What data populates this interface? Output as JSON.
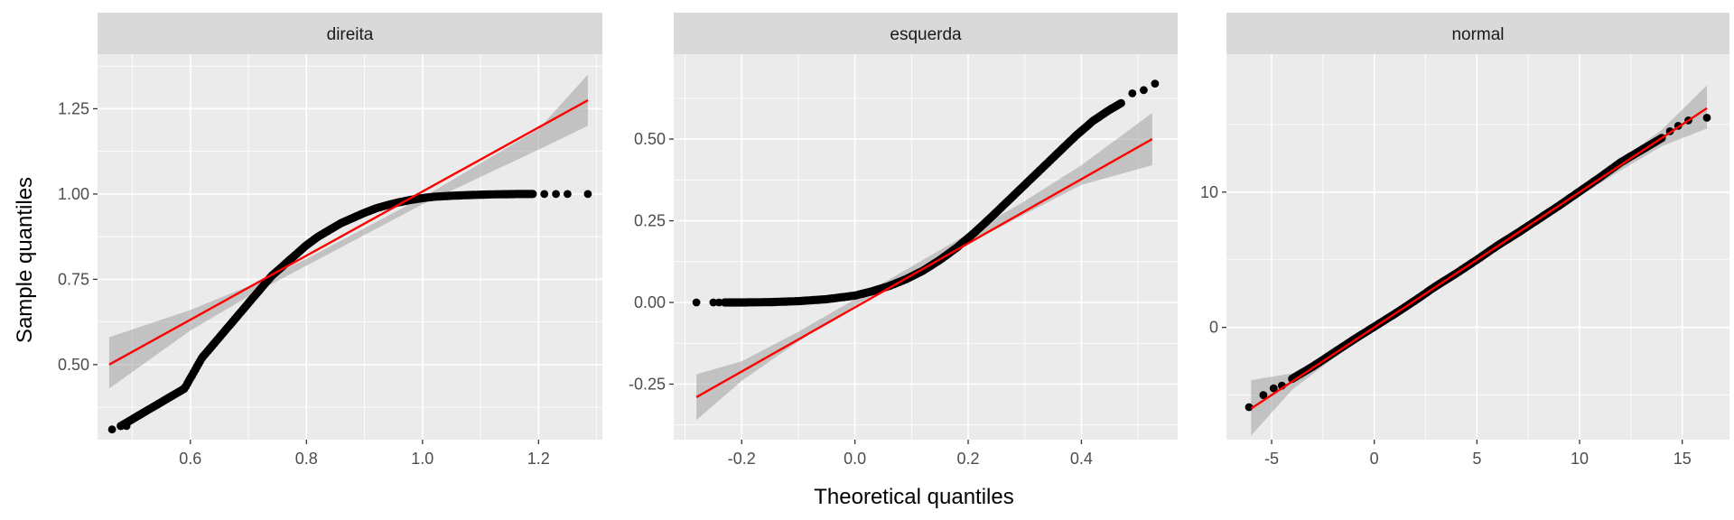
{
  "chart_data": {
    "type": "scatter",
    "xlabel": "Theoretical quantiles",
    "ylabel": "Sample quantiles",
    "colors": {
      "points": "#000000",
      "line": "#FF0000",
      "band": "#999999",
      "panel": "#EBEBEB",
      "strip": "#D9D9D9",
      "grid": "#FFFFFF"
    },
    "panels": [
      {
        "title": "direita",
        "xlim": [
          0.44,
          1.31
        ],
        "ylim": [
          0.28,
          1.41
        ],
        "xticks": [
          0.6,
          0.8,
          1.0,
          1.2
        ],
        "xtick_labels": [
          "0.6",
          "0.8",
          "1.0",
          "1.2"
        ],
        "yticks": [
          0.5,
          0.75,
          1.0,
          1.25
        ],
        "ytick_labels": [
          "0.50",
          "0.75",
          "1.00",
          "1.25"
        ],
        "line": {
          "x": [
            0.46,
            1.285
          ],
          "y": [
            0.5,
            1.275
          ]
        },
        "band": {
          "x": [
            0.46,
            0.6,
            0.7,
            0.8,
            0.9,
            1.0,
            1.1,
            1.2,
            1.285
          ],
          "lower": [
            0.43,
            0.6,
            0.7,
            0.79,
            0.88,
            0.97,
            1.05,
            1.13,
            1.2
          ],
          "upper": [
            0.58,
            0.66,
            0.73,
            0.81,
            0.9,
            0.99,
            1.09,
            1.19,
            1.35
          ]
        },
        "curve": {
          "x": [
            0.48,
            0.52,
            0.55,
            0.58,
            0.59,
            0.6,
            0.61,
            0.62,
            0.64,
            0.66,
            0.68,
            0.7,
            0.72,
            0.74,
            0.76,
            0.78,
            0.8,
            0.82,
            0.84,
            0.86,
            0.88,
            0.9,
            0.92,
            0.94,
            0.96,
            0.98,
            1.0,
            1.02,
            1.05,
            1.08,
            1.12,
            1.16,
            1.19
          ],
          "y": [
            0.32,
            0.36,
            0.39,
            0.42,
            0.43,
            0.46,
            0.49,
            0.52,
            0.56,
            0.6,
            0.64,
            0.68,
            0.72,
            0.76,
            0.79,
            0.82,
            0.85,
            0.875,
            0.895,
            0.915,
            0.93,
            0.945,
            0.958,
            0.968,
            0.976,
            0.983,
            0.988,
            0.992,
            0.995,
            0.997,
            0.999,
            1.0,
            1.0
          ]
        },
        "tail_points": [
          [
            0.465,
            0.31
          ],
          [
            0.49,
            0.32
          ],
          [
            0.51,
            0.35
          ],
          [
            1.21,
            1.0
          ],
          [
            1.23,
            1.0
          ],
          [
            1.25,
            1.0
          ],
          [
            1.285,
            1.0
          ]
        ]
      },
      {
        "title": "esquerda",
        "xlim": [
          -0.32,
          0.57
        ],
        "ylim": [
          -0.42,
          0.76
        ],
        "xticks": [
          -0.2,
          0.0,
          0.2,
          0.4
        ],
        "xtick_labels": [
          "-0.2",
          "0.0",
          "0.2",
          "0.4"
        ],
        "yticks": [
          -0.25,
          0.0,
          0.25,
          0.5
        ],
        "ytick_labels": [
          "-0.25",
          "0.00",
          "0.25",
          "0.50"
        ],
        "line": {
          "x": [
            -0.28,
            0.525
          ],
          "y": [
            -0.29,
            0.5
          ]
        },
        "band": {
          "x": [
            -0.28,
            -0.2,
            -0.1,
            0.0,
            0.1,
            0.2,
            0.3,
            0.4,
            0.525
          ],
          "lower": [
            -0.36,
            -0.24,
            -0.12,
            -0.01,
            0.09,
            0.18,
            0.27,
            0.36,
            0.42
          ],
          "upper": [
            -0.22,
            -0.18,
            -0.09,
            0.01,
            0.11,
            0.21,
            0.31,
            0.42,
            0.58
          ]
        },
        "curve": {
          "x": [
            -0.23,
            -0.2,
            -0.15,
            -0.1,
            -0.05,
            0.0,
            0.03,
            0.06,
            0.09,
            0.12,
            0.15,
            0.18,
            0.21,
            0.24,
            0.27,
            0.3,
            0.33,
            0.36,
            0.39,
            0.42,
            0.45,
            0.47
          ],
          "y": [
            0.0,
            0.0,
            0.001,
            0.004,
            0.01,
            0.021,
            0.034,
            0.05,
            0.071,
            0.097,
            0.13,
            0.168,
            0.212,
            0.26,
            0.31,
            0.36,
            0.41,
            0.46,
            0.51,
            0.555,
            0.59,
            0.61
          ],
          "shift": 0.0
        },
        "tail_points": [
          [
            -0.28,
            0.0
          ],
          [
            -0.25,
            0.0
          ],
          [
            -0.24,
            0.0
          ],
          [
            0.49,
            0.64
          ],
          [
            0.51,
            0.65
          ],
          [
            0.53,
            0.67
          ]
        ]
      },
      {
        "title": "normal",
        "xlim": [
          -7.2,
          17.3
        ],
        "ylim": [
          -8.3,
          20.2
        ],
        "xticks": [
          -5,
          0,
          5,
          10,
          15
        ],
        "xtick_labels": [
          "-5",
          "0",
          "5",
          "10",
          "15"
        ],
        "yticks": [
          0,
          10
        ],
        "ytick_labels": [
          "0",
          "10"
        ],
        "line": {
          "x": [
            -6.0,
            16.2
          ],
          "y": [
            -6.0,
            16.2
          ]
        },
        "band": {
          "x": [
            -6.0,
            -4.0,
            -2.0,
            0.0,
            2.0,
            4.0,
            6.0,
            8.0,
            10.0,
            12.0,
            14.0,
            16.2
          ],
          "lower": [
            -8.0,
            -4.6,
            -2.3,
            -0.2,
            1.8,
            3.85,
            5.85,
            7.8,
            9.7,
            11.6,
            13.4,
            14.7
          ],
          "upper": [
            -3.9,
            -3.4,
            -1.7,
            0.2,
            2.2,
            4.15,
            6.15,
            8.2,
            10.3,
            12.4,
            14.6,
            17.9
          ]
        },
        "curve": {
          "x": [
            -4.0,
            -3.0,
            -2.0,
            -1.0,
            0.0,
            1.0,
            2.0,
            3.0,
            4.0,
            5.0,
            6.0,
            7.0,
            8.0,
            9.0,
            10.0,
            11.0,
            12.0,
            13.0,
            14.0
          ],
          "y": [
            -3.8,
            -2.9,
            -1.9,
            -0.9,
            0.05,
            1.0,
            2.0,
            3.05,
            4.0,
            5.0,
            6.05,
            7.0,
            8.0,
            9.0,
            10.05,
            11.1,
            12.2,
            13.1,
            14.0
          ]
        },
        "tail_points": [
          [
            -6.1,
            -5.9
          ],
          [
            -5.4,
            -5.0
          ],
          [
            -4.9,
            -4.5
          ],
          [
            -4.5,
            -4.3
          ],
          [
            14.4,
            14.5
          ],
          [
            14.8,
            14.9
          ],
          [
            15.3,
            15.3
          ],
          [
            16.2,
            15.5
          ]
        ]
      }
    ]
  }
}
